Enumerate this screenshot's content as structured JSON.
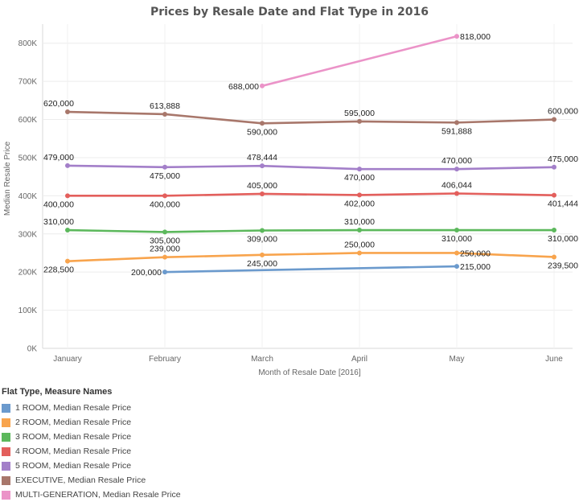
{
  "chart_data": {
    "type": "line",
    "title": "Prices by Resale Date and Flat Type in 2016",
    "xlabel": "Month of Resale Date [2016]",
    "ylabel": "Median Resale Price",
    "categories": [
      "January",
      "February",
      "March",
      "April",
      "May",
      "June"
    ],
    "ylim": [
      0,
      850000
    ],
    "yticks": [
      0,
      100000,
      200000,
      300000,
      400000,
      500000,
      600000,
      700000,
      800000
    ],
    "ytick_labels": [
      "0K",
      "100K",
      "200K",
      "300K",
      "400K",
      "500K",
      "600K",
      "700K",
      "800K"
    ],
    "grid": true,
    "legend_position": "bottom-left",
    "legend_title": "Flat Type, Measure Names",
    "series": [
      {
        "name": "1 ROOM, Median Resale Price",
        "color": "#6b9acd",
        "values": [
          null,
          200000,
          null,
          null,
          215000,
          null
        ],
        "labels": [
          "",
          "200,000",
          "",
          "",
          "215,000",
          ""
        ],
        "label_pos": [
          "",
          "left",
          "",
          "",
          "right",
          ""
        ]
      },
      {
        "name": "2 ROOM, Median Resale Price",
        "color": "#f8a44d",
        "values": [
          228500,
          239000,
          245000,
          250000,
          250000,
          239500
        ],
        "labels": [
          "228,500",
          "239,000",
          "245,000",
          "250,000",
          "250,000",
          "239,500"
        ],
        "label_pos": [
          "below",
          "above",
          "below",
          "above",
          "right",
          "below"
        ]
      },
      {
        "name": "3 ROOM, Median Resale Price",
        "color": "#5cb85c",
        "values": [
          310000,
          305000,
          309000,
          310000,
          310000,
          310000
        ],
        "labels": [
          "310,000",
          "305,000",
          "309,000",
          "310,000",
          "310,000",
          "310,000"
        ],
        "label_pos": [
          "above",
          "below",
          "below",
          "above",
          "below",
          "below"
        ]
      },
      {
        "name": "4 ROOM, Median Resale Price",
        "color": "#e35f5c",
        "values": [
          400000,
          400000,
          405000,
          402000,
          406044,
          401444
        ],
        "labels": [
          "400,000",
          "400,000",
          "405,000",
          "402,000",
          "406,044",
          "401,444"
        ],
        "label_pos": [
          "below",
          "below",
          "above",
          "below",
          "above",
          "below"
        ]
      },
      {
        "name": "5 ROOM, Median Resale Price",
        "color": "#a37fc9",
        "values": [
          479000,
          475000,
          478444,
          470000,
          470000,
          475000
        ],
        "labels": [
          "479,000",
          "475,000",
          "478,444",
          "470,000",
          "470,000",
          "475,000"
        ],
        "label_pos": [
          "above",
          "below",
          "above",
          "below",
          "above",
          "above"
        ]
      },
      {
        "name": "EXECUTIVE, Median Resale Price",
        "color": "#a8776b",
        "values": [
          620000,
          613888,
          590000,
          595000,
          591888,
          600000
        ],
        "labels": [
          "620,000",
          "613,888",
          "590,000",
          "595,000",
          "591,888",
          "600,000"
        ],
        "label_pos": [
          "above",
          "above",
          "below",
          "above",
          "below",
          "above"
        ]
      },
      {
        "name": "MULTI-GENERATION, Median Resale Price",
        "color": "#eb93c8",
        "values": [
          null,
          null,
          688000,
          null,
          818000,
          null
        ],
        "labels": [
          "",
          "",
          "688,000",
          "",
          "818,000",
          ""
        ],
        "label_pos": [
          "",
          "",
          "left",
          "",
          "right",
          ""
        ]
      }
    ]
  }
}
